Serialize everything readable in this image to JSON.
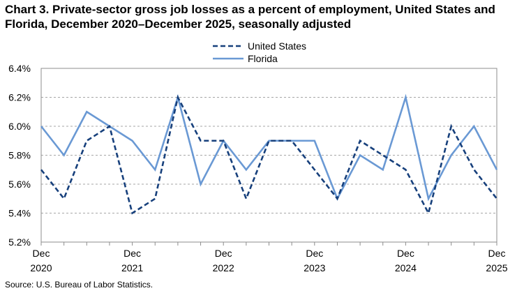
{
  "chart_data": {
    "type": "line",
    "title": "Chart 3. Private-sector gross job losses as a percent of employment, United States and Florida, December 2020–December 2025, seasonally adjusted",
    "source": "Source: U.S. Bureau of Labor Statistics.",
    "y_ticks": [
      "5.2%",
      "5.4%",
      "5.6%",
      "5.8%",
      "6.0%",
      "6.2%",
      "6.4%"
    ],
    "ylim": [
      5.2,
      6.4
    ],
    "x_tick_labels": [
      {
        "month": "Dec",
        "year": "2020",
        "index": 0
      },
      {
        "month": "Dec",
        "year": "2021",
        "index": 4
      },
      {
        "month": "Dec",
        "year": "2022",
        "index": 8
      },
      {
        "month": "Dec",
        "year": "2023",
        "index": 12
      },
      {
        "month": "Dec",
        "year": "2024",
        "index": 16
      },
      {
        "month": "Dec",
        "year": "2025",
        "index": 20
      }
    ],
    "grid": true,
    "legend_placement": "top-center",
    "series": [
      {
        "name": "United States",
        "style": "dashed",
        "color": "#17407c",
        "values": [
          5.7,
          5.5,
          5.9,
          6.0,
          5.4,
          5.5,
          6.2,
          5.9,
          5.9,
          5.5,
          5.9,
          5.9,
          5.7,
          5.5,
          5.9,
          5.8,
          5.7,
          5.4,
          6.0,
          5.7,
          5.5
        ]
      },
      {
        "name": "Florida",
        "style": "solid",
        "color": "#6a99d4",
        "values": [
          6.0,
          5.8,
          6.1,
          6.0,
          5.9,
          5.7,
          6.2,
          5.6,
          5.9,
          5.7,
          5.9,
          5.9,
          5.9,
          5.5,
          5.8,
          5.7,
          6.2,
          5.5,
          5.8,
          6.0,
          5.7
        ]
      }
    ]
  }
}
